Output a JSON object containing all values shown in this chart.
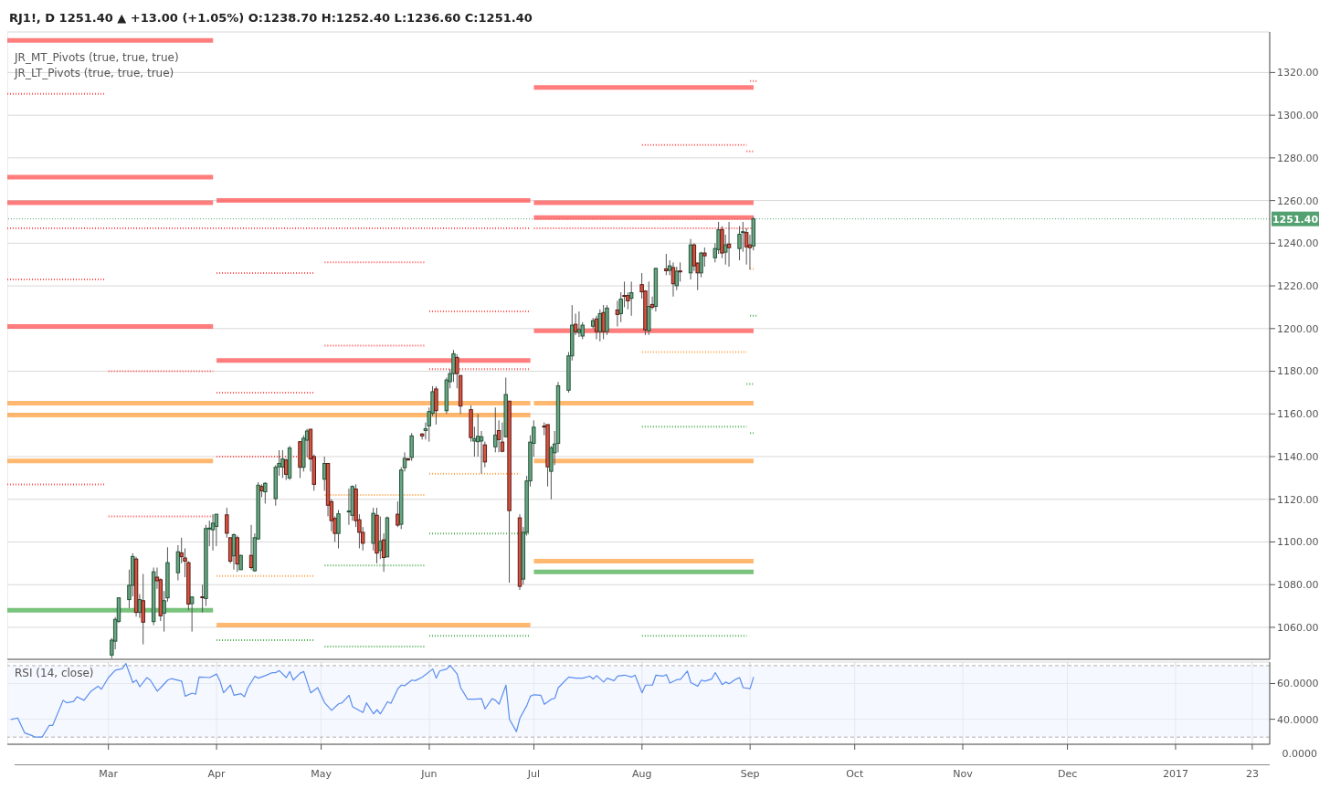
{
  "chart_data": [
    {
      "type": "candlestick",
      "title": "RJ1!, D  1251.40 ▲ +13.00 (+1.05%)  O:1238.70  H:1252.40  L:1236.60  C:1251.40",
      "annotations": [
        "JR_MT_Pivots (true, true, true)",
        "JR_LT_Pivots (true, true, true)"
      ],
      "x": [
        "2016-03-02",
        "2016-03-03",
        "2016-03-04",
        "2016-03-07",
        "2016-03-08",
        "2016-03-09",
        "2016-03-10",
        "2016-03-11",
        "2016-03-14",
        "2016-03-15",
        "2016-03-16",
        "2016-03-17",
        "2016-03-18",
        "2016-03-21",
        "2016-03-22",
        "2016-03-23",
        "2016-03-24",
        "2016-03-25",
        "2016-03-28",
        "2016-03-29",
        "2016-03-30",
        "2016-03-31",
        "2016-04-01",
        "2016-04-04",
        "2016-04-05",
        "2016-04-06",
        "2016-04-07",
        "2016-04-08",
        "2016-04-11",
        "2016-04-12",
        "2016-04-13",
        "2016-04-14",
        "2016-04-15",
        "2016-04-18",
        "2016-04-19",
        "2016-04-20",
        "2016-04-21",
        "2016-04-22",
        "2016-04-25",
        "2016-04-26",
        "2016-04-27",
        "2016-04-28",
        "2016-04-29",
        "2016-05-02",
        "2016-05-03",
        "2016-05-04",
        "2016-05-05",
        "2016-05-06",
        "2016-05-09",
        "2016-05-10",
        "2016-05-11",
        "2016-05-12",
        "2016-05-13",
        "2016-05-16",
        "2016-05-17",
        "2016-05-18",
        "2016-05-19",
        "2016-05-20",
        "2016-05-23",
        "2016-05-24",
        "2016-05-25",
        "2016-05-26",
        "2016-05-27",
        "2016-05-30",
        "2016-05-31",
        "2016-06-01",
        "2016-06-02",
        "2016-06-03",
        "2016-06-06",
        "2016-06-07",
        "2016-06-08",
        "2016-06-09",
        "2016-06-10",
        "2016-06-13",
        "2016-06-14",
        "2016-06-15",
        "2016-06-16",
        "2016-06-17",
        "2016-06-20",
        "2016-06-21",
        "2016-06-22",
        "2016-06-23",
        "2016-06-24",
        "2016-06-27",
        "2016-06-28",
        "2016-06-29",
        "2016-06-30",
        "2016-07-01",
        "2016-07-04",
        "2016-07-05",
        "2016-07-06",
        "2016-07-07",
        "2016-07-08",
        "2016-07-11",
        "2016-07-12",
        "2016-07-13",
        "2016-07-14",
        "2016-07-15",
        "2016-07-18",
        "2016-07-19",
        "2016-07-20",
        "2016-07-21",
        "2016-07-22",
        "2016-07-25",
        "2016-07-26",
        "2016-07-27",
        "2016-07-28",
        "2016-07-29",
        "2016-08-01",
        "2016-08-02",
        "2016-08-03",
        "2016-08-04",
        "2016-08-05",
        "2016-08-08",
        "2016-08-09",
        "2016-08-10",
        "2016-08-11",
        "2016-08-12",
        "2016-08-15",
        "2016-08-16",
        "2016-08-17",
        "2016-08-18",
        "2016-08-19",
        "2016-08-22",
        "2016-08-23",
        "2016-08-24",
        "2016-08-25",
        "2016-08-26",
        "2016-08-29",
        "2016-08-30",
        "2016-08-31",
        "2016-09-01",
        "2016-09-02"
      ],
      "ohlc": [
        [
          1047,
          1055,
          1045.5,
          1054
        ],
        [
          1053.5,
          1064.8,
          1049.7,
          1063.7
        ],
        [
          1062.8,
          1074,
          1062,
          1073.8
        ],
        [
          1073,
          1087,
          1069,
          1079.7
        ],
        [
          1079.7,
          1094.7,
          1074.5,
          1093.2
        ],
        [
          1092,
          1093,
          1065,
          1067
        ],
        [
          1067,
          1075.6,
          1064.4,
          1073
        ],
        [
          1072.5,
          1085,
          1052,
          1062.4
        ],
        [
          1062.7,
          1088,
          1061,
          1086
        ],
        [
          1083.5,
          1088,
          1078,
          1081.8
        ],
        [
          1082.3,
          1083,
          1063,
          1065.4
        ],
        [
          1066.6,
          1077,
          1058,
          1072.5
        ],
        [
          1073.8,
          1097.5,
          1072,
          1090.3
        ],
        [
          1085.6,
          1098.5,
          1082,
          1095.4
        ],
        [
          1094.9,
          1102,
          1090,
          1093.1
        ],
        [
          1092.5,
          1097,
          1083.5,
          1091
        ],
        [
          1090.3,
          1091,
          1068,
          1070.9
        ],
        [
          1071.1,
          1074.5,
          1058,
          1074.2
        ],
        [
          1074.3,
          1080,
          1067,
          1074.2
        ],
        [
          1073.5,
          1108,
          1070,
          1106.3
        ],
        [
          1106.3,
          1110,
          1098,
          1106.5
        ],
        [
          1105.7,
          1113,
          1096,
          1108.8
        ],
        [
          1107.3,
          1113,
          1098,
          1113
        ],
        [
          1112.7,
          1116,
          1102,
          1104.1
        ],
        [
          1102,
          1102,
          1090,
          1091
        ],
        [
          1093.5,
          1104,
          1087,
          1103.4
        ],
        [
          1102,
          1103,
          1086,
          1089.7
        ],
        [
          1087,
          1094,
          1087,
          1093.7
        ],
        [
          1093.7,
          1108,
          1087,
          1088
        ],
        [
          1086.5,
          1104,
          1086,
          1102
        ],
        [
          1101.4,
          1128,
          1101,
          1126.6
        ],
        [
          1126,
          1127,
          1121,
          1124
        ],
        [
          1123.5,
          1128,
          1118,
          1127.5
        ],
        [
          1120.3,
          1136,
          1117,
          1135
        ],
        [
          1135.2,
          1143,
          1131,
          1136.8
        ],
        [
          1135.1,
          1143,
          1130,
          1138.9
        ],
        [
          1138.4,
          1139,
          1129,
          1131.7
        ],
        [
          1130,
          1145,
          1129,
          1144
        ],
        [
          1147,
          1147,
          1130,
          1135
        ],
        [
          1135,
          1150,
          1133,
          1148.6
        ],
        [
          1147.7,
          1153,
          1140,
          1152
        ],
        [
          1152.8,
          1153,
          1133,
          1138.9
        ],
        [
          1140,
          1141,
          1124,
          1127
        ],
        [
          1129.4,
          1140,
          1124,
          1136.8
        ],
        [
          1136.8,
          1137,
          1112,
          1117.2
        ],
        [
          1118.9,
          1120,
          1105,
          1110
        ],
        [
          1111,
          1112,
          1100,
          1104
        ],
        [
          1104,
          1115,
          1097,
          1113.2
        ],
        [
          1114.3,
          1125,
          1108,
          1114.5
        ],
        [
          1112.5,
          1126.5,
          1110,
          1126
        ],
        [
          1124.8,
          1127,
          1107,
          1110
        ],
        [
          1110.4,
          1113,
          1097,
          1104.5
        ],
        [
          1104.5,
          1107,
          1096,
          1099.4
        ],
        [
          1099.4,
          1116,
          1096,
          1113.4
        ],
        [
          1112.5,
          1116,
          1090,
          1094.8
        ],
        [
          1096,
          1112,
          1092,
          1100.3
        ],
        [
          1101,
          1104,
          1086,
          1092.7
        ],
        [
          1093,
          1112,
          1093,
          1111.3
        ],
        [
          1113,
          1119,
          1107,
          1107.9
        ],
        [
          1108.3,
          1135,
          1106,
          1133.7
        ],
        [
          1134.8,
          1142,
          1133,
          1139.2
        ],
        [
          1138.9,
          1139.5,
          1138,
          1138.7
        ],
        [
          1139.6,
          1151,
          1138,
          1149.7
        ],
        [
          1150.6,
          1151,
          1148,
          1149.7
        ],
        [
          1152.2,
          1156,
          1148,
          1153.1
        ],
        [
          1154.4,
          1163,
          1147,
          1161.1
        ],
        [
          1160.3,
          1173,
          1159,
          1170.4
        ],
        [
          1171.7,
          1173,
          1155,
          1161.5
        ],
        [
          1161.5,
          1177,
          1160,
          1175.9
        ],
        [
          1175.1,
          1181,
          1172,
          1178.9
        ],
        [
          1178.9,
          1190,
          1175,
          1188.2
        ],
        [
          1186.5,
          1188,
          1172,
          1178.9
        ],
        [
          1178,
          1178,
          1160,
          1163.7
        ],
        [
          1162,
          1164,
          1147,
          1148.9
        ],
        [
          1147.3,
          1154,
          1140,
          1148.4
        ],
        [
          1147,
          1160,
          1140,
          1149.5
        ],
        [
          1147.3,
          1152,
          1132,
          1149.3
        ],
        [
          1145.5,
          1147,
          1135,
          1137.5
        ],
        [
          1144.6,
          1163,
          1142,
          1150.1
        ],
        [
          1152.2,
          1157,
          1142,
          1148
        ],
        [
          1146.8,
          1156,
          1142,
          1142.5
        ],
        [
          1149.3,
          1177,
          1149,
          1169.1
        ],
        [
          1166,
          1166,
          1080.9,
          1114.7
        ],
        [
          1111.3,
          1113,
          1077.5,
          1079.2
        ],
        [
          1082.6,
          1107,
          1080,
          1104.5
        ],
        [
          1104.5,
          1131,
          1103,
          1128.6
        ],
        [
          1128.6,
          1150,
          1126,
          1146.8
        ],
        [
          1146.2,
          1157,
          1140,
          1153.8
        ],
        [
          1154.3,
          1156,
          1150,
          1154.2
        ],
        [
          1155,
          1155,
          1126,
          1135.2
        ],
        [
          1133.1,
          1145,
          1120,
          1144.1
        ],
        [
          1141.8,
          1152,
          1136,
          1145.9
        ],
        [
          1146.2,
          1175,
          1142,
          1173.2
        ],
        [
          1171.1,
          1189,
          1170,
          1187.2
        ],
        [
          1187.2,
          1211,
          1185,
          1201.6
        ],
        [
          1202,
          1207,
          1197,
          1198.6
        ],
        [
          1198.2,
          1208,
          1196,
          1199.4
        ],
        [
          1196.5,
          1203,
          1195,
          1201.6
        ],
        [
          1201.1,
          1205,
          1200,
          1203.7
        ],
        [
          1204.5,
          1206,
          1195,
          1198.6
        ],
        [
          1198.6,
          1209,
          1194,
          1207
        ],
        [
          1207.5,
          1211,
          1195,
          1198.6
        ],
        [
          1198.6,
          1211,
          1197,
          1209.6
        ],
        [
          1208.7,
          1213,
          1201,
          1206.6
        ],
        [
          1207,
          1217,
          1203,
          1213.8
        ],
        [
          1215.5,
          1222,
          1210,
          1215.4
        ],
        [
          1215.5,
          1217,
          1209,
          1213
        ],
        [
          1214.2,
          1222,
          1206,
          1216.8
        ],
        [
          1220.6,
          1226,
          1214,
          1217.2
        ],
        [
          1217.6,
          1218,
          1197,
          1199.4
        ],
        [
          1199,
          1222,
          1197,
          1210.4
        ],
        [
          1211.3,
          1215,
          1209,
          1210
        ],
        [
          1210.4,
          1228.5,
          1208,
          1228.2
        ],
        [
          1228,
          1235,
          1225,
          1227.1
        ],
        [
          1227.3,
          1232,
          1225,
          1229.4
        ],
        [
          1228.6,
          1231,
          1215,
          1221
        ],
        [
          1220.1,
          1229,
          1218,
          1226.9
        ],
        [
          1227,
          1231,
          1222,
          1226.9
        ],
        [
          1226.1,
          1242,
          1223,
          1239.2
        ],
        [
          1239.2,
          1240,
          1227,
          1229.4
        ],
        [
          1230.7,
          1231,
          1218,
          1226.1
        ],
        [
          1226.1,
          1236,
          1224,
          1235.4
        ],
        [
          1235.4,
          1238,
          1229,
          1234.1
        ],
        [
          1233.2,
          1240,
          1231,
          1237.5
        ],
        [
          1237,
          1250,
          1235,
          1246.3
        ],
        [
          1246.3,
          1248,
          1233,
          1235.4
        ],
        [
          1235.8,
          1244,
          1230,
          1239.2
        ],
        [
          1239.6,
          1250,
          1229,
          1237.9
        ],
        [
          1237.5,
          1248,
          1232,
          1244.2
        ],
        [
          1245.2,
          1250,
          1236,
          1245.4
        ],
        [
          1245,
          1247,
          1230,
          1238.3
        ],
        [
          1239.2,
          1244,
          1227.6,
          1237.9
        ],
        [
          1238.7,
          1252.4,
          1236.6,
          1251.4
        ]
      ],
      "series": [
        {
          "type": "line",
          "x": [
            "2016-02-01",
            "2016-03-31"
          ],
          "values": [
            1335,
            1335
          ],
          "color": "#ff5252",
          "line_style": "solid"
        },
        {
          "type": "line",
          "x": [
            "2016-02-01",
            "2016-03-31"
          ],
          "values": [
            1271,
            1271
          ],
          "color": "#ff5252",
          "line_style": "solid"
        },
        {
          "type": "line",
          "x": [
            "2016-02-01",
            "2016-03-31"
          ],
          "values": [
            1259,
            1259
          ],
          "color": "#ff5252",
          "line_style": "solid"
        },
        {
          "type": "line",
          "x": [
            "2016-02-01",
            "2016-03-31"
          ],
          "values": [
            1201,
            1201
          ],
          "color": "#ff5252",
          "line_style": "solid"
        },
        {
          "type": "line",
          "x": [
            "2016-04-01",
            "2016-06-30"
          ],
          "values": [
            1260,
            1260
          ],
          "color": "#ff5252",
          "line_style": "solid"
        },
        {
          "type": "line",
          "x": [
            "2016-04-01",
            "2016-06-30"
          ],
          "values": [
            1185,
            1185
          ],
          "color": "#ff5252",
          "line_style": "solid"
        },
        {
          "type": "line",
          "x": [
            "2016-07-01",
            "2016-09-02"
          ],
          "values": [
            1313,
            1313
          ],
          "color": "#ff5252",
          "line_style": "solid"
        },
        {
          "type": "line",
          "x": [
            "2016-07-01",
            "2016-09-02"
          ],
          "values": [
            1259,
            1259
          ],
          "color": "#ff5252",
          "line_style": "solid"
        },
        {
          "type": "line",
          "x": [
            "2016-07-01",
            "2016-09-02"
          ],
          "values": [
            1252,
            1252
          ],
          "color": "#ff5252",
          "line_style": "solid"
        },
        {
          "type": "line",
          "x": [
            "2016-07-01",
            "2016-09-02"
          ],
          "values": [
            1199,
            1199
          ],
          "color": "#ff5252",
          "line_style": "solid"
        },
        {
          "type": "line",
          "x": [
            "2016-02-01",
            "2016-06-30"
          ],
          "values": [
            1247,
            1247
          ],
          "color": "#ff5252",
          "line_style": "dotted"
        },
        {
          "type": "line",
          "x": [
            "2016-07-01",
            "2016-09-02"
          ],
          "values": [
            1247,
            1247
          ],
          "color": "#ff5252",
          "line_style": "dotted"
        },
        {
          "type": "line",
          "x": [
            "2016-02-01",
            "2016-06-30"
          ],
          "values": [
            1165,
            1165
          ],
          "color": "#ffa040",
          "line_style": "solid"
        },
        {
          "type": "line",
          "x": [
            "2016-02-01",
            "2016-06-30"
          ],
          "values": [
            1159.5,
            1159.5
          ],
          "color": "#ffa040",
          "line_style": "solid"
        },
        {
          "type": "line",
          "x": [
            "2016-02-01",
            "2016-03-31"
          ],
          "values": [
            1138,
            1138
          ],
          "color": "#ffa040",
          "line_style": "solid"
        },
        {
          "type": "line",
          "x": [
            "2016-04-01",
            "2016-06-30"
          ],
          "values": [
            1061,
            1061
          ],
          "color": "#ffa040",
          "line_style": "solid"
        },
        {
          "type": "line",
          "x": [
            "2016-07-01",
            "2016-09-02"
          ],
          "values": [
            1165,
            1165
          ],
          "color": "#ffa040",
          "line_style": "solid"
        },
        {
          "type": "line",
          "x": [
            "2016-07-01",
            "2016-09-02"
          ],
          "values": [
            1138,
            1138
          ],
          "color": "#ffa040",
          "line_style": "solid"
        },
        {
          "type": "line",
          "x": [
            "2016-07-01",
            "2016-09-02"
          ],
          "values": [
            1091,
            1091
          ],
          "color": "#ffa040",
          "line_style": "solid"
        },
        {
          "type": "line",
          "x": [
            "2016-02-01",
            "2016-03-31"
          ],
          "values": [
            1068,
            1068
          ],
          "color": "#4caf50",
          "line_style": "solid"
        },
        {
          "type": "line",
          "x": [
            "2016-07-01",
            "2016-09-02"
          ],
          "values": [
            1086,
            1086
          ],
          "color": "#4caf50",
          "line_style": "solid"
        },
        {
          "type": "line",
          "x": [
            "2016-02-01",
            "2016-02-29"
          ],
          "values": [
            1310,
            1310
          ],
          "color": "#ff5252",
          "line_style": "dotted"
        },
        {
          "type": "line",
          "x": [
            "2016-02-01",
            "2016-02-29"
          ],
          "values": [
            1223,
            1223
          ],
          "color": "#ff5252",
          "line_style": "dotted"
        },
        {
          "type": "line",
          "x": [
            "2016-02-01",
            "2016-02-29"
          ],
          "values": [
            1127,
            1127
          ],
          "color": "#ff5252",
          "line_style": "dotted"
        },
        {
          "type": "line",
          "x": [
            "2016-03-01",
            "2016-03-31"
          ],
          "values": [
            1180,
            1180
          ],
          "color": "#ff5252",
          "line_style": "dotted"
        },
        {
          "type": "line",
          "x": [
            "2016-03-01",
            "2016-03-31"
          ],
          "values": [
            1112,
            1112
          ],
          "color": "#ff5252",
          "line_style": "dotted"
        },
        {
          "type": "line",
          "x": [
            "2016-04-01",
            "2016-04-29"
          ],
          "values": [
            1226,
            1226
          ],
          "color": "#ff5252",
          "line_style": "dotted"
        },
        {
          "type": "line",
          "x": [
            "2016-04-01",
            "2016-04-29"
          ],
          "values": [
            1170,
            1170
          ],
          "color": "#ff5252",
          "line_style": "dotted"
        },
        {
          "type": "line",
          "x": [
            "2016-04-01",
            "2016-04-29"
          ],
          "values": [
            1140,
            1140
          ],
          "color": "#ff5252",
          "line_style": "dotted"
        },
        {
          "type": "line",
          "x": [
            "2016-05-02",
            "2016-05-31"
          ],
          "values": [
            1231,
            1231
          ],
          "color": "#ff5252",
          "line_style": "dotted"
        },
        {
          "type": "line",
          "x": [
            "2016-05-02",
            "2016-05-31"
          ],
          "values": [
            1192,
            1192
          ],
          "color": "#ff5252",
          "line_style": "dotted"
        },
        {
          "type": "line",
          "x": [
            "2016-06-01",
            "2016-06-30"
          ],
          "values": [
            1208,
            1208
          ],
          "color": "#ff5252",
          "line_style": "dotted"
        },
        {
          "type": "line",
          "x": [
            "2016-06-01",
            "2016-06-30"
          ],
          "values": [
            1181,
            1181
          ],
          "color": "#ff5252",
          "line_style": "dotted"
        },
        {
          "type": "line",
          "x": [
            "2016-08-01",
            "2016-08-31"
          ],
          "values": [
            1286,
            1286
          ],
          "color": "#ff5252",
          "line_style": "dotted"
        },
        {
          "type": "line",
          "x": [
            "2016-09-01",
            "2016-09-03"
          ],
          "values": [
            1316,
            1316
          ],
          "color": "#ff5252",
          "line_style": "dotted"
        },
        {
          "type": "line",
          "x": [
            "2016-08-31",
            "2016-09-02"
          ],
          "values": [
            1283,
            1283
          ],
          "color": "#ff5252",
          "line_style": "dotted"
        },
        {
          "type": "line",
          "x": [
            "2016-04-01",
            "2016-04-29"
          ],
          "values": [
            1084,
            1084
          ],
          "color": "#ffa040",
          "line_style": "dotted"
        },
        {
          "type": "line",
          "x": [
            "2016-05-02",
            "2016-05-31"
          ],
          "values": [
            1122,
            1122
          ],
          "color": "#ffa040",
          "line_style": "dotted"
        },
        {
          "type": "line",
          "x": [
            "2016-06-01",
            "2016-06-27"
          ],
          "values": [
            1132,
            1132
          ],
          "color": "#ffa040",
          "line_style": "dotted"
        },
        {
          "type": "line",
          "x": [
            "2016-08-01",
            "2016-08-31"
          ],
          "values": [
            1189,
            1189
          ],
          "color": "#ffa040",
          "line_style": "dotted"
        },
        {
          "type": "line",
          "x": [
            "2016-09-01",
            "2016-09-02"
          ],
          "values": [
            1228,
            1228
          ],
          "color": "#ffa040",
          "line_style": "dotted"
        },
        {
          "type": "line",
          "x": [
            "2016-04-01",
            "2016-04-29"
          ],
          "values": [
            1054,
            1054
          ],
          "color": "#4caf50",
          "line_style": "dotted"
        },
        {
          "type": "line",
          "x": [
            "2016-05-02",
            "2016-05-31"
          ],
          "values": [
            1089,
            1089
          ],
          "color": "#4caf50",
          "line_style": "dotted"
        },
        {
          "type": "line",
          "x": [
            "2016-05-02",
            "2016-05-31"
          ],
          "values": [
            1051,
            1051
          ],
          "color": "#4caf50",
          "line_style": "dotted"
        },
        {
          "type": "line",
          "x": [
            "2016-06-01",
            "2016-06-30"
          ],
          "values": [
            1104,
            1104
          ],
          "color": "#4caf50",
          "line_style": "dotted"
        },
        {
          "type": "line",
          "x": [
            "2016-06-01",
            "2016-06-30"
          ],
          "values": [
            1056,
            1056
          ],
          "color": "#4caf50",
          "line_style": "dotted"
        },
        {
          "type": "line",
          "x": [
            "2016-08-01",
            "2016-08-31"
          ],
          "values": [
            1154,
            1154
          ],
          "color": "#4caf50",
          "line_style": "dotted"
        },
        {
          "type": "line",
          "x": [
            "2016-08-01",
            "2016-08-31"
          ],
          "values": [
            1056,
            1056
          ],
          "color": "#4caf50",
          "line_style": "dotted"
        },
        {
          "type": "line",
          "x": [
            "2016-09-01",
            "2016-09-03"
          ],
          "values": [
            1206,
            1206
          ],
          "color": "#4caf50",
          "line_style": "dotted"
        },
        {
          "type": "line",
          "x": [
            "2016-08-31",
            "2016-09-02"
          ],
          "values": [
            1174,
            1174
          ],
          "color": "#4caf50",
          "line_style": "dotted"
        },
        {
          "type": "line",
          "x": [
            "2016-09-01",
            "2016-09-02"
          ],
          "values": [
            1151,
            1151
          ],
          "color": "#4caf50",
          "line_style": "dotted"
        }
      ],
      "ref_lines": [
        {
          "axis": "y",
          "value": 1251.4,
          "label": "1251.40",
          "color": "#53a070",
          "line_style": "dotted"
        }
      ],
      "xlim": [
        "2016-02-01",
        "2017-01-28"
      ],
      "xticks": [
        {
          "value": "2016-03-01",
          "label": null
        },
        {
          "value": "2016-04-01",
          "label": null
        },
        {
          "value": "2016-05-01",
          "label": null
        },
        {
          "value": "2016-06-01",
          "label": null
        },
        {
          "value": "2016-07-01",
          "label": null
        },
        {
          "value": "2016-08-01",
          "label": null
        },
        {
          "value": "2016-09-01",
          "label": null
        },
        {
          "value": "2016-10-01",
          "label": null
        },
        {
          "value": "2016-11-01",
          "label": null
        },
        {
          "value": "2016-12-01",
          "label": null
        },
        {
          "value": "2017-01-01",
          "label": null
        },
        {
          "value": "2017-01-23",
          "label": null
        }
      ],
      "ylim": [
        1045,
        1339
      ],
      "yticks": [
        {
          "value": 1060,
          "label": "1060.00"
        },
        {
          "value": 1080,
          "label": "1080.00"
        },
        {
          "value": 1100,
          "label": "1100.00"
        },
        {
          "value": 1120,
          "label": "1120.00"
        },
        {
          "value": 1140,
          "label": "1140.00"
        },
        {
          "value": 1160,
          "label": "1160.00"
        },
        {
          "value": 1180,
          "label": "1180.00"
        },
        {
          "value": 1200,
          "label": "1200.00"
        },
        {
          "value": 1220,
          "label": "1220.00"
        },
        {
          "value": 1240,
          "label": "1240.00"
        },
        {
          "value": 1260,
          "label": "1260.00"
        },
        {
          "value": 1280,
          "label": "1280.00"
        },
        {
          "value": 1300,
          "label": "1300.00"
        },
        {
          "value": 1320,
          "label": "1320.00"
        }
      ],
      "grid": true,
      "tick_labels": "y"
    },
    {
      "type": "line",
      "title": "RSI (14, close)",
      "x": [
        "2016-02-02",
        "2016-02-04",
        "2016-02-06",
        "2016-02-08",
        "2016-02-09",
        "2016-02-11",
        "2016-02-13",
        "2016-02-14",
        "2016-02-17",
        "2016-02-18",
        "2016-02-20",
        "2016-02-21",
        "2016-02-23",
        "2016-02-25",
        "2016-02-27",
        "2016-02-28",
        "2016-03-01",
        "2016-03-03",
        "2016-03-05",
        "2016-03-06",
        "2016-03-08",
        "2016-03-09",
        "2016-03-10",
        "2016-03-12",
        "2016-03-13",
        "2016-03-15",
        "2016-03-16",
        "2016-03-18",
        "2016-03-19",
        "2016-03-22",
        "2016-03-23",
        "2016-03-25",
        "2016-03-26",
        "2016-03-27",
        "2016-03-30",
        "2016-04-01",
        "2016-04-02",
        "2016-04-03",
        "2016-04-05",
        "2016-04-06",
        "2016-04-08",
        "2016-04-09",
        "2016-04-10",
        "2016-04-12",
        "2016-04-13",
        "2016-04-15",
        "2016-04-17",
        "2016-04-18",
        "2016-04-19",
        "2016-04-21",
        "2016-04-22",
        "2016-04-23",
        "2016-04-25",
        "2016-04-26",
        "2016-04-28",
        "2016-04-30",
        "2016-05-02",
        "2016-05-04",
        "2016-05-06",
        "2016-05-07",
        "2016-05-09",
        "2016-05-10",
        "2016-05-13",
        "2016-05-14",
        "2016-05-16",
        "2016-05-17",
        "2016-05-18",
        "2016-05-20",
        "2016-05-21",
        "2016-05-23",
        "2016-05-24",
        "2016-05-25",
        "2016-05-27",
        "2016-05-28",
        "2016-05-30",
        "2016-06-02",
        "2016-06-03",
        "2016-06-04",
        "2016-06-06",
        "2016-06-07",
        "2016-06-09",
        "2016-06-10",
        "2016-06-12",
        "2016-06-14",
        "2016-06-16",
        "2016-06-17",
        "2016-06-19",
        "2016-06-20",
        "2016-06-21",
        "2016-06-23",
        "2016-06-24",
        "2016-06-26",
        "2016-06-27",
        "2016-06-29",
        "2016-06-30",
        "2016-07-01",
        "2016-07-03",
        "2016-07-04",
        "2016-07-06",
        "2016-07-07",
        "2016-07-08",
        "2016-07-11",
        "2016-07-13",
        "2016-07-15",
        "2016-07-17",
        "2016-07-18",
        "2016-07-19",
        "2016-07-21",
        "2016-07-22",
        "2016-07-24",
        "2016-07-25",
        "2016-07-27",
        "2016-07-29",
        "2016-07-30",
        "2016-08-01",
        "2016-08-02",
        "2016-08-04",
        "2016-08-05",
        "2016-08-07",
        "2016-08-08",
        "2016-08-09",
        "2016-08-11",
        "2016-08-12",
        "2016-08-14",
        "2016-08-15",
        "2016-08-17",
        "2016-08-18",
        "2016-08-19",
        "2016-08-21",
        "2016-08-22",
        "2016-08-24",
        "2016-08-25",
        "2016-08-26",
        "2016-08-28",
        "2016-08-29",
        "2016-08-30",
        "2016-09-01",
        "2016-09-02"
      ],
      "series": [
        {
          "color": "#5b8def",
          "values": [
            39.9,
            40.7,
            32.3,
            30.9,
            30.0,
            30.0,
            36.5,
            36.5,
            50.6,
            49.2,
            50.0,
            52.6,
            50.6,
            55.7,
            58.5,
            56.8,
            63.3,
            67.5,
            68.4,
            71.2,
            60.5,
            61.9,
            58.2,
            63.3,
            61.9,
            55.7,
            57.7,
            61.9,
            62.7,
            61.3,
            52.9,
            54.6,
            54.0,
            63.6,
            63.3,
            65.3,
            61.3,
            54.8,
            59.1,
            53.4,
            54.3,
            52.6,
            57.7,
            64.1,
            63.0,
            64.4,
            66.1,
            66.1,
            67.2,
            63.3,
            66.7,
            61.9,
            65.8,
            66.7,
            54.8,
            57.7,
            49.2,
            45.0,
            48.6,
            49.2,
            53.4,
            47.0,
            43.8,
            49.2,
            43.0,
            45.3,
            43.0,
            49.8,
            48.9,
            57.1,
            59.1,
            58.8,
            61.9,
            61.6,
            63.6,
            68.1,
            63.0,
            67.0,
            68.1,
            70.1,
            65.3,
            57.7,
            51.2,
            51.2,
            51.5,
            45.8,
            51.5,
            50.6,
            48.4,
            59.1,
            39.9,
            33.1,
            40.7,
            47.8,
            52.9,
            53.7,
            53.4,
            48.4,
            51.2,
            51.7,
            57.7,
            63.6,
            63.0,
            63.0,
            64.1,
            62.5,
            64.4,
            60.8,
            63.0,
            61.6,
            64.1,
            64.7,
            63.6,
            64.7,
            54.8,
            59.1,
            59.1,
            64.7,
            64.1,
            65.0,
            60.2,
            62.2,
            62.2,
            67.0,
            60.5,
            58.5,
            61.9,
            61.3,
            62.5,
            66.1,
            59.4,
            60.8,
            59.9,
            62.5,
            63.3,
            57.7,
            57.1,
            63.6
          ]
        }
      ],
      "bands": [
        {
          "axis": "y",
          "from": 30,
          "to": 70,
          "color": "#eef3fd"
        }
      ],
      "ref_lines": [
        {
          "axis": "y",
          "value": 70,
          "color": "#b0b0b0",
          "line_style": "dashed"
        },
        {
          "axis": "y",
          "value": 30,
          "color": "#b0b0b0",
          "line_style": "dashed"
        }
      ],
      "xlim": [
        "2016-02-01",
        "2017-01-28"
      ],
      "xticks": [
        {
          "value": "2016-03-01",
          "label": "Mar"
        },
        {
          "value": "2016-04-01",
          "label": "Apr"
        },
        {
          "value": "2016-05-01",
          "label": "May"
        },
        {
          "value": "2016-06-01",
          "label": "Jun"
        },
        {
          "value": "2016-07-01",
          "label": "Jul"
        },
        {
          "value": "2016-08-01",
          "label": "Aug"
        },
        {
          "value": "2016-09-01",
          "label": "Sep"
        },
        {
          "value": "2016-10-01",
          "label": "Oct"
        },
        {
          "value": "2016-11-01",
          "label": "Nov"
        },
        {
          "value": "2016-12-01",
          "label": "Dec"
        },
        {
          "value": "2017-01-01",
          "label": "2017"
        },
        {
          "value": "2017-01-23",
          "label": "23"
        }
      ],
      "ylim": [
        26,
        72
      ],
      "yticks": [
        {
          "value": 40,
          "label": "40.0000"
        },
        {
          "value": 60,
          "label": "60.0000"
        }
      ],
      "grid": true
    },
    {
      "type": "other",
      "annotations": [
        "0.0000"
      ]
    }
  ]
}
